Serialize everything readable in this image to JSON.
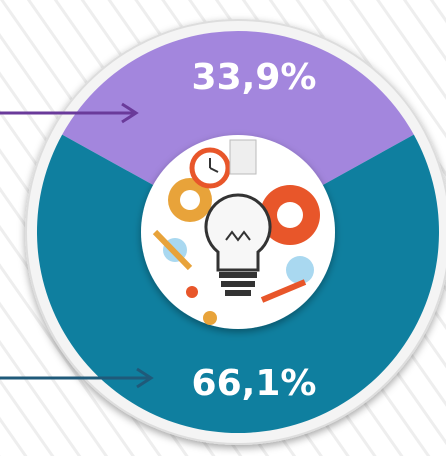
{
  "chart_data": {
    "type": "pie",
    "values": [
      33.9,
      66.1
    ],
    "value_labels": [
      "33,9%",
      "66,1%"
    ],
    "colors": [
      "#a386dd",
      "#0f7f9f"
    ]
  }
}
